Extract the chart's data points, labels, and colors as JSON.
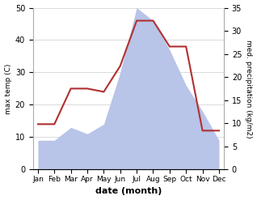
{
  "months": [
    "Jan",
    "Feb",
    "Mar",
    "Apr",
    "May",
    "Jun",
    "Jul",
    "Aug",
    "Sep",
    "Oct",
    "Nov",
    "Dec"
  ],
  "temperature": [
    14,
    14,
    25,
    25,
    24,
    32,
    46,
    46,
    38,
    38,
    12,
    12
  ],
  "precipitation_left_scale": [
    9,
    9,
    13,
    11,
    14,
    30,
    50,
    46,
    37,
    26,
    18,
    9
  ],
  "temp_ylim": [
    0,
    50
  ],
  "precip_ylim": [
    0,
    35
  ],
  "temp_color": "#b03030",
  "precip_color_fill": "#b8c4e8",
  "xlabel": "date (month)",
  "ylabel_left": "max temp (C)",
  "ylabel_right": "med. precipitation (kg/m2)",
  "bg_color": "#ffffff",
  "grid_color": "#cccccc",
  "spine_color": "#aaaaaa"
}
